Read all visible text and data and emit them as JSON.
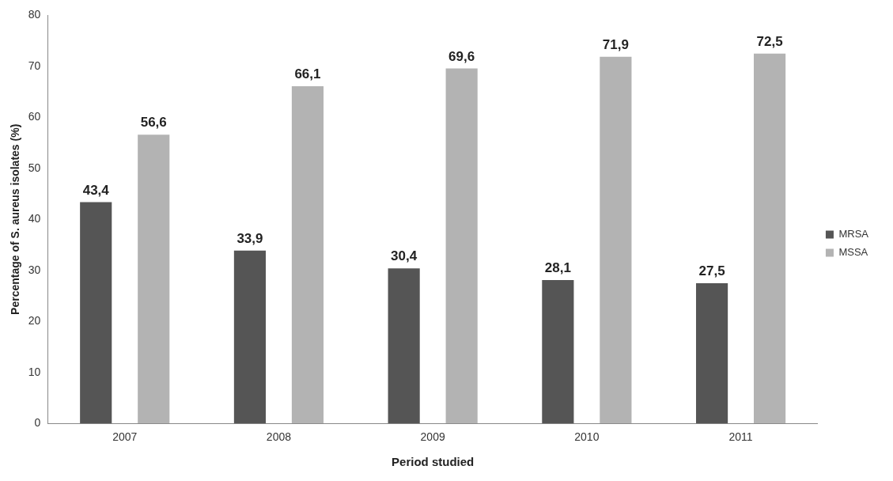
{
  "chart_data": {
    "type": "bar",
    "xlabel": "Period studied",
    "ylabel": "Percentage of S. aureus isolates (%)",
    "categories": [
      "2007",
      "2008",
      "2009",
      "2010",
      "2011"
    ],
    "series": [
      {
        "name": "MRSA",
        "color": "#555555",
        "values": [
          43.4,
          33.9,
          30.4,
          28.1,
          27.5
        ],
        "value_labels": [
          "43,4",
          "33,9",
          "30,4",
          "28,1",
          "27,5"
        ]
      },
      {
        "name": "MSSA",
        "color": "#b3b3b3",
        "values": [
          56.6,
          66.1,
          69.6,
          71.9,
          72.5
        ],
        "value_labels": [
          "56,6",
          "66,1",
          "69,6",
          "71,9",
          "72,5"
        ]
      }
    ],
    "ylim": [
      0,
      80
    ],
    "yticks": [
      0,
      10,
      20,
      30,
      40,
      50,
      60,
      70,
      80
    ],
    "grid": false,
    "legend": "right"
  }
}
